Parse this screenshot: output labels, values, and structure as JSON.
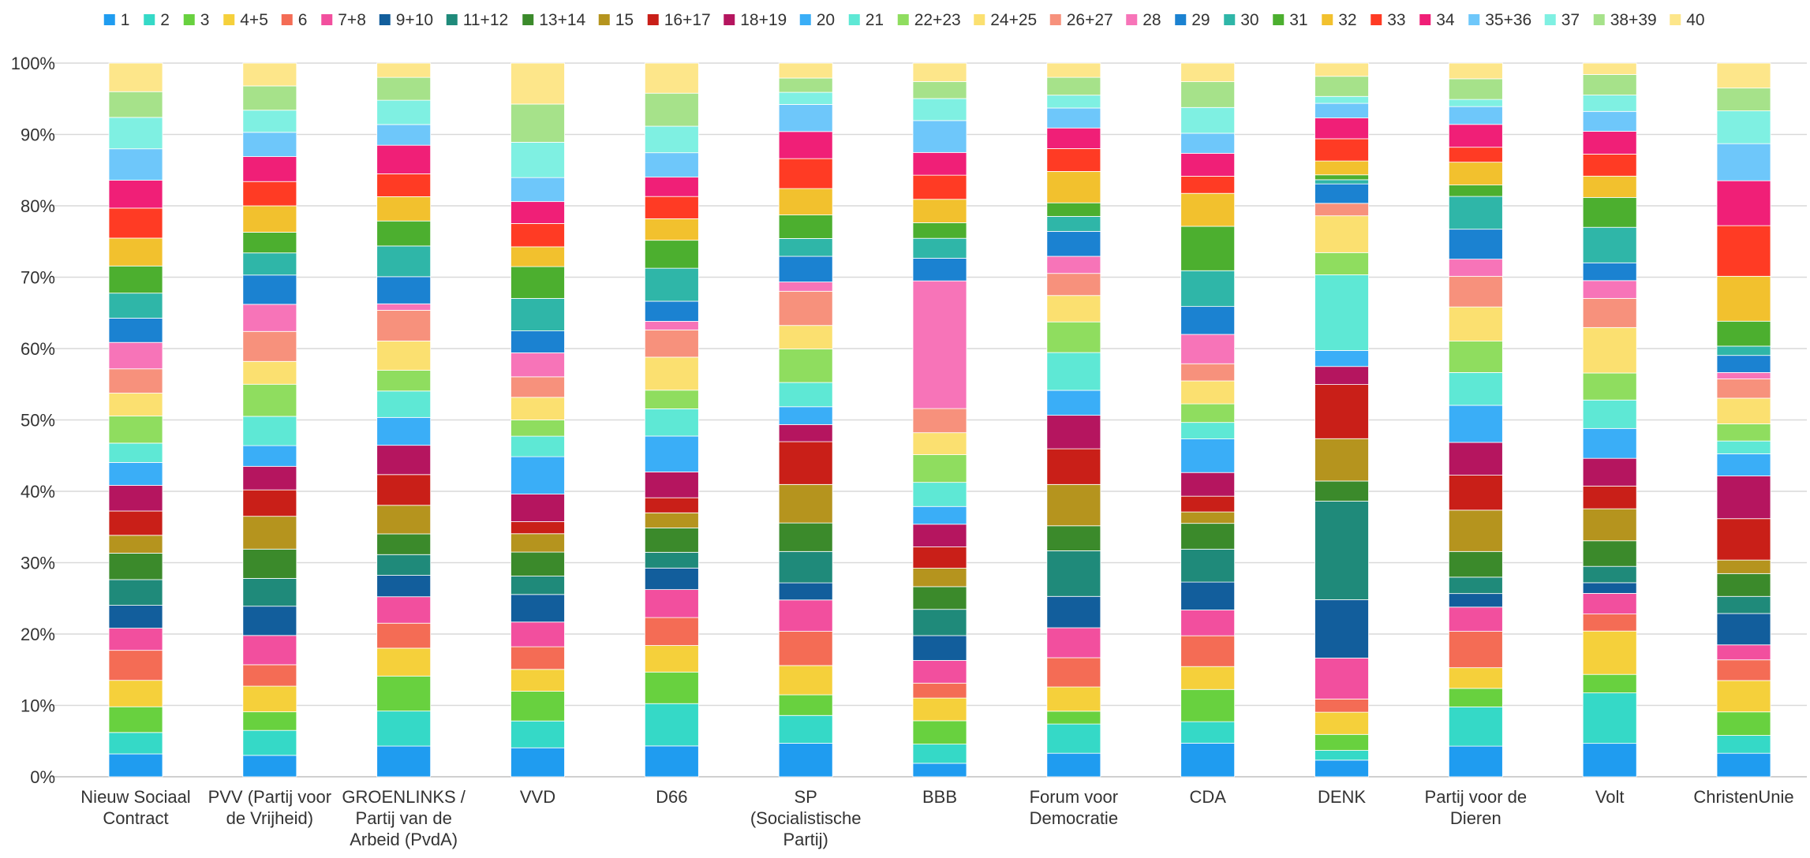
{
  "chart_data": {
    "type": "bar",
    "stacked": "percent",
    "title": "",
    "xlabel": "",
    "ylabel": "",
    "ylim": [
      0,
      100
    ],
    "y_ticks": [
      "0%",
      "10%",
      "20%",
      "30%",
      "40%",
      "50%",
      "60%",
      "70%",
      "80%",
      "90%",
      "100%"
    ],
    "grid": true,
    "legend_position": "top",
    "categories": [
      "Nieuw Sociaal Contract",
      "PVV (Partij voor de Vrijheid)",
      "GROENLINKS / Partij van de Arbeid (PvdA)",
      "VVD",
      "D66",
      "SP (Socialistische Partij)",
      "BBB",
      "Forum voor Democratie",
      "CDA",
      "DENK",
      "Partij voor de Dieren",
      "Volt",
      "ChristenUnie"
    ],
    "category_lines": [
      [
        "Nieuw Sociaal",
        "Contract"
      ],
      [
        "PVV (Partij voor",
        "de Vrijheid)"
      ],
      [
        "GROENLINKS /",
        "Partij van de",
        "Arbeid (PvdA)"
      ],
      [
        "VVD"
      ],
      [
        "D66"
      ],
      [
        "SP",
        "(Socialistische",
        "Partij)"
      ],
      [
        "BBB"
      ],
      [
        "Forum voor",
        "Democratie"
      ],
      [
        "CDA"
      ],
      [
        "DENK"
      ],
      [
        "Partij voor de",
        "Dieren"
      ],
      [
        "Volt"
      ],
      [
        "ChristenUnie"
      ]
    ],
    "series": [
      {
        "name": "1",
        "color": "#1f9cf0",
        "values": [
          3.2,
          3.0,
          4.3,
          4.1,
          4.3,
          4.7,
          1.9,
          3.3,
          4.7,
          2.4,
          4.3,
          4.7,
          3.3
        ]
      },
      {
        "name": "2",
        "color": "#35d9c7",
        "values": [
          3.0,
          3.5,
          4.9,
          3.8,
          5.9,
          3.9,
          2.7,
          4.1,
          3.0,
          1.4,
          5.5,
          7.1,
          2.5
        ]
      },
      {
        "name": "3",
        "color": "#68d13f",
        "values": [
          3.6,
          2.6,
          4.9,
          4.2,
          4.4,
          2.9,
          3.3,
          1.8,
          4.5,
          2.3,
          2.6,
          2.6,
          3.3
        ]
      },
      {
        "name": "4+5",
        "color": "#f5d03b",
        "values": [
          3.7,
          3.6,
          3.9,
          3.1,
          3.7,
          4.1,
          3.2,
          3.4,
          3.2,
          3.2,
          2.9,
          6.1,
          4.4
        ]
      },
      {
        "name": "6",
        "color": "#f46c55",
        "values": [
          4.2,
          3.0,
          3.5,
          3.2,
          3.9,
          4.8,
          2.1,
          4.1,
          4.3,
          1.9,
          5.1,
          2.4,
          2.9
        ]
      },
      {
        "name": "7+8",
        "color": "#f24f9e",
        "values": [
          3.1,
          4.1,
          3.7,
          3.5,
          3.9,
          4.4,
          3.2,
          4.2,
          3.6,
          5.9,
          3.4,
          2.9,
          2.1
        ]
      },
      {
        "name": "9+10",
        "color": "#125e9c",
        "values": [
          3.2,
          4.1,
          3.0,
          3.9,
          3.0,
          2.4,
          3.5,
          4.4,
          3.9,
          8.4,
          1.9,
          1.5,
          4.4
        ]
      },
      {
        "name": "11+12",
        "color": "#1f8a7a",
        "values": [
          3.6,
          3.9,
          2.9,
          2.6,
          2.2,
          4.4,
          3.7,
          6.4,
          4.6,
          14.2,
          2.3,
          2.3,
          2.4
        ]
      },
      {
        "name": "13+14",
        "color": "#3b8a2b",
        "values": [
          3.7,
          4.1,
          2.9,
          3.4,
          3.4,
          4.0,
          3.2,
          3.5,
          3.6,
          2.9,
          3.6,
          3.6,
          3.2
        ]
      },
      {
        "name": "15",
        "color": "#b5941e",
        "values": [
          2.5,
          4.6,
          4.0,
          2.6,
          2.1,
          5.4,
          2.6,
          5.8,
          1.6,
          6.1,
          5.8,
          4.5,
          1.9
        ]
      },
      {
        "name": "16+17",
        "color": "#c91f18",
        "values": [
          3.4,
          3.7,
          4.3,
          1.7,
          2.1,
          6.0,
          3.0,
          5.0,
          2.2,
          7.8,
          4.9,
          3.2,
          5.8
        ]
      },
      {
        "name": "18+19",
        "color": "#b5155f",
        "values": [
          3.6,
          3.3,
          4.1,
          3.9,
          3.6,
          2.4,
          3.2,
          4.7,
          3.3,
          2.6,
          4.6,
          3.9,
          6.0
        ]
      },
      {
        "name": "20",
        "color": "#3aaef7",
        "values": [
          3.2,
          2.9,
          3.9,
          5.3,
          5.0,
          2.5,
          2.5,
          3.5,
          4.7,
          2.3,
          5.2,
          4.2,
          3.1
        ]
      },
      {
        "name": "21",
        "color": "#5ee8d5",
        "values": [
          2.7,
          4.1,
          3.7,
          2.9,
          3.8,
          3.4,
          3.4,
          5.3,
          2.3,
          10.9,
          4.6,
          4.0,
          1.8
        ]
      },
      {
        "name": "22+23",
        "color": "#8fdd5f",
        "values": [
          3.8,
          4.5,
          2.9,
          2.3,
          2.6,
          4.7,
          3.9,
          4.3,
          2.6,
          3.2,
          4.4,
          3.8,
          2.4
        ]
      },
      {
        "name": "24+25",
        "color": "#fbe070",
        "values": [
          3.2,
          3.2,
          4.1,
          3.2,
          4.6,
          3.3,
          3.1,
          3.7,
          3.2,
          5.3,
          4.8,
          6.4,
          3.6
        ]
      },
      {
        "name": "26+27",
        "color": "#f7917c",
        "values": [
          3.4,
          4.2,
          4.3,
          2.9,
          3.8,
          4.8,
          3.4,
          3.1,
          2.4,
          1.8,
          4.3,
          4.1,
          2.7
        ]
      },
      {
        "name": "28",
        "color": "#f774b8",
        "values": [
          3.7,
          3.8,
          0.9,
          3.4,
          1.2,
          1.3,
          18.0,
          2.4,
          4.1,
          0.0,
          2.4,
          2.5,
          0.9
        ]
      },
      {
        "name": "29",
        "color": "#1b82d1",
        "values": [
          3.4,
          4.1,
          3.8,
          3.1,
          2.8,
          3.6,
          3.2,
          3.5,
          3.9,
          2.8,
          4.2,
          2.5,
          2.4
        ]
      },
      {
        "name": "30",
        "color": "#2fb6a8",
        "values": [
          3.5,
          3.1,
          4.3,
          4.6,
          4.6,
          2.5,
          2.8,
          2.1,
          5.0,
          0.6,
          4.6,
          5.0,
          1.3
        ]
      },
      {
        "name": "31",
        "color": "#4caf2f",
        "values": [
          3.8,
          2.9,
          3.5,
          4.5,
          3.9,
          3.3,
          2.2,
          1.9,
          6.2,
          0.7,
          1.6,
          4.2,
          3.5
        ]
      },
      {
        "name": "32",
        "color": "#f2c12e",
        "values": [
          3.9,
          3.7,
          3.4,
          2.8,
          3.0,
          3.7,
          3.3,
          4.4,
          4.6,
          2.0,
          3.2,
          3.0,
          6.3
        ]
      },
      {
        "name": "33",
        "color": "#ff3b24",
        "values": [
          4.2,
          3.4,
          3.2,
          3.3,
          3.1,
          4.2,
          3.4,
          3.2,
          2.4,
          3.2,
          2.1,
          3.1,
          7.1
        ]
      },
      {
        "name": "34",
        "color": "#f01f77",
        "values": [
          3.9,
          3.5,
          4.0,
          3.1,
          2.7,
          3.8,
          3.2,
          2.9,
          3.2,
          3.0,
          3.2,
          3.2,
          6.3
        ]
      },
      {
        "name": "35+36",
        "color": "#6ec7fa",
        "values": [
          4.4,
          3.4,
          2.9,
          3.4,
          3.4,
          3.8,
          4.5,
          2.8,
          2.8,
          2.1,
          2.5,
          2.8,
          5.2
        ]
      },
      {
        "name": "37",
        "color": "#7ff0e2",
        "values": [
          4.4,
          3.1,
          3.4,
          5.0,
          3.7,
          1.7,
          3.1,
          1.8,
          3.6,
          1.0,
          1.0,
          2.3,
          4.6
        ]
      },
      {
        "name": "38+39",
        "color": "#a6e28a",
        "values": [
          3.6,
          3.4,
          3.2,
          5.4,
          4.6,
          2.0,
          2.4,
          2.5,
          3.6,
          2.9,
          2.9,
          2.9,
          3.2
        ]
      },
      {
        "name": "40",
        "color": "#fde68a",
        "values": [
          4.0,
          3.2,
          2.0,
          5.8,
          4.2,
          2.1,
          2.6,
          2.0,
          2.6,
          1.9,
          2.2,
          1.6,
          3.5
        ]
      }
    ]
  }
}
